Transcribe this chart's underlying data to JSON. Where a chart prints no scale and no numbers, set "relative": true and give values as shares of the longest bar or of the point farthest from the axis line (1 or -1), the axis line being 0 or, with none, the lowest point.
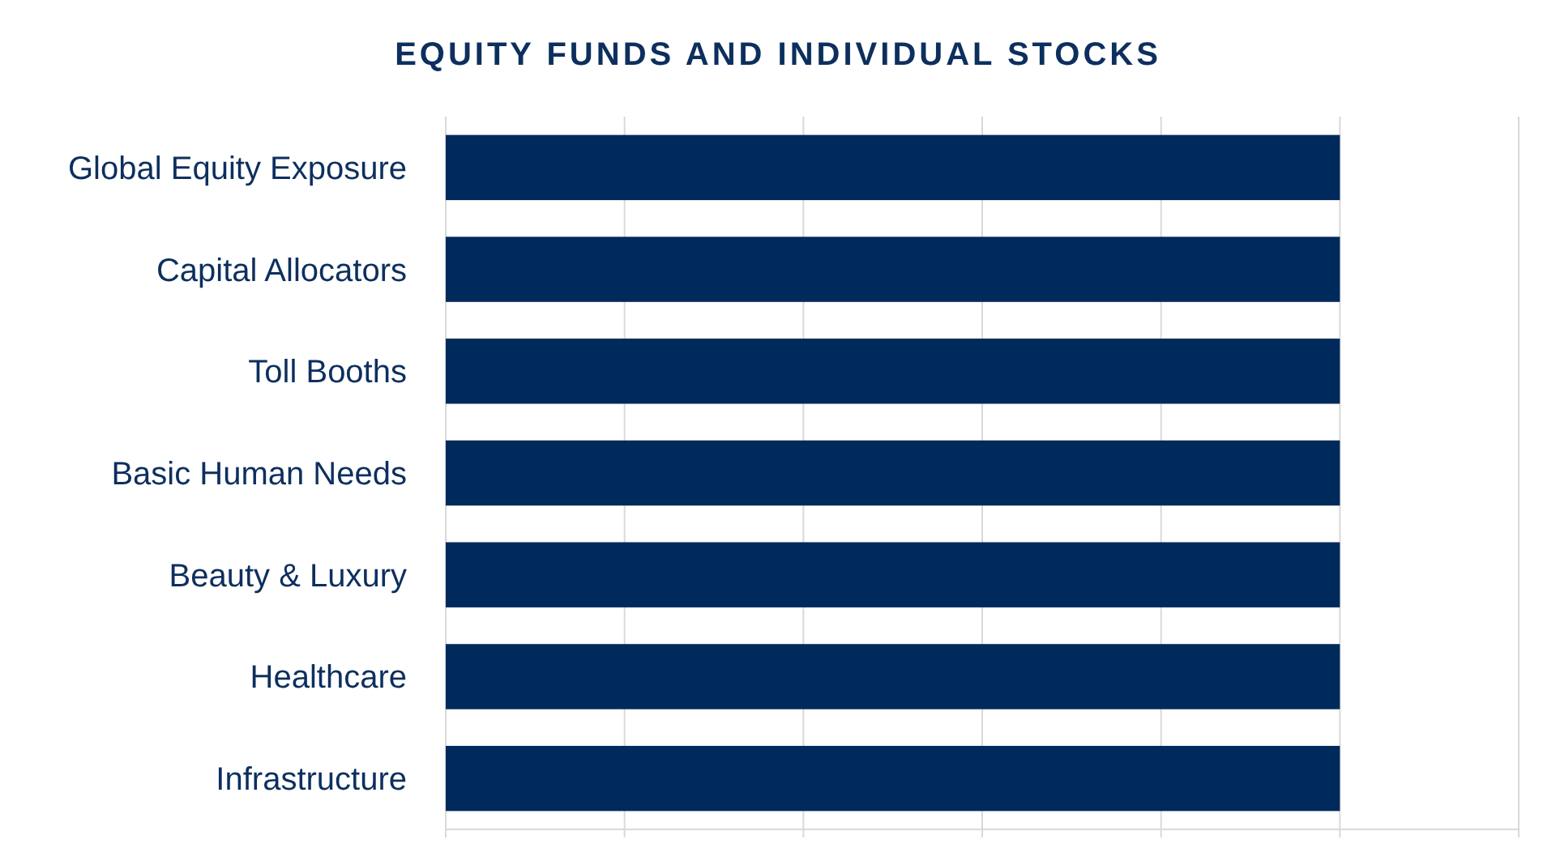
{
  "chart_data": {
    "type": "bar",
    "title": "EQUITY FUNDS AND INDIVIDUAL STOCKS",
    "orientation": "horizontal",
    "relative": true,
    "categories": [
      "Global Equity Exposure",
      "Capital Allocators",
      "Toll Booths",
      "Basic Human Needs",
      "Beauty & Luxury",
      "Healthcare",
      "Infrastructure"
    ],
    "values": [
      1,
      1,
      1,
      1,
      1,
      1,
      1
    ],
    "color": "#002a5c",
    "grid": "x"
  }
}
